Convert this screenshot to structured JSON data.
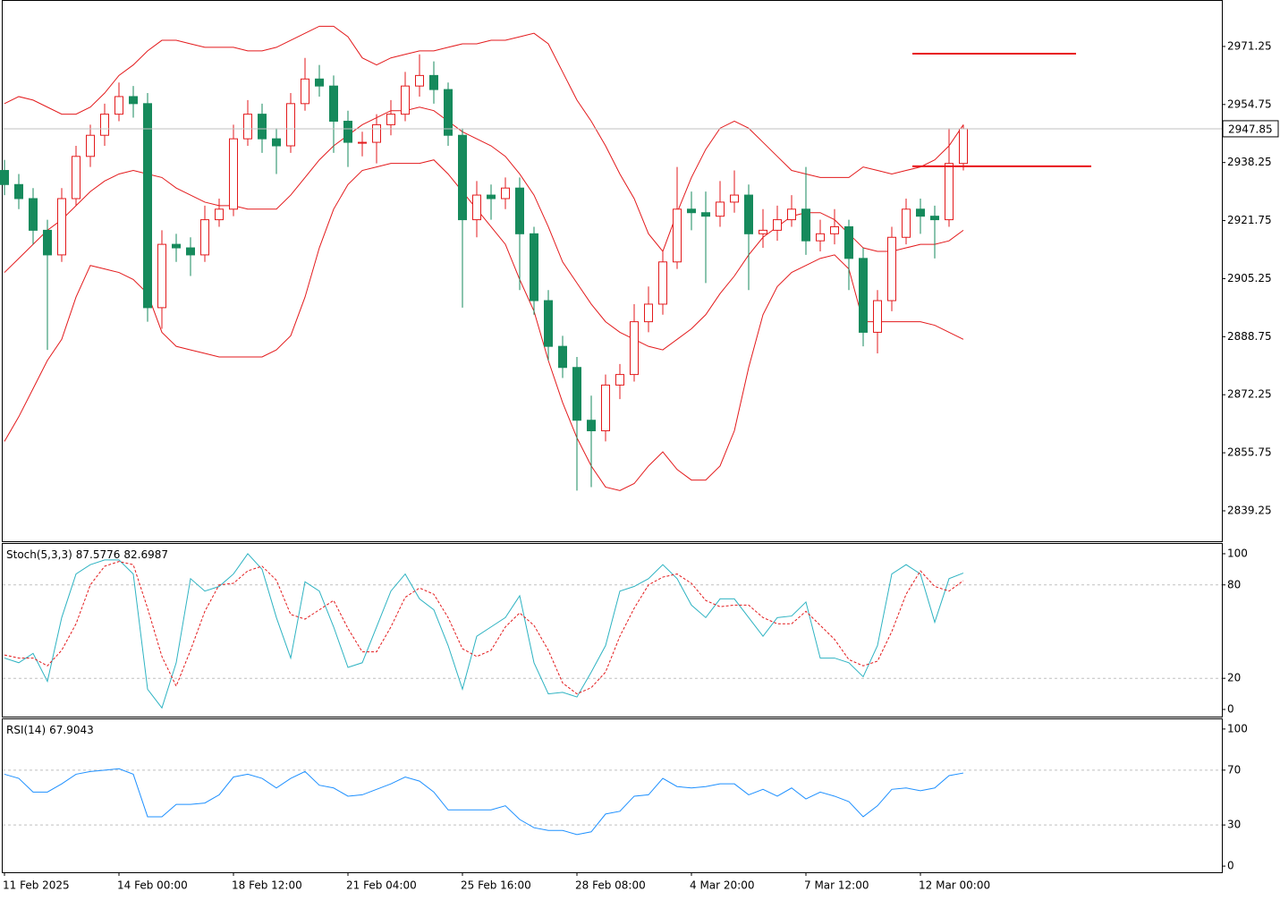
{
  "chart_data": [
    {
      "type": "candlestick",
      "categories": [
        "11 Feb 2025",
        null,
        null,
        null,
        null,
        null,
        null,
        null,
        "14 Feb 00:00",
        null,
        null,
        null,
        null,
        null,
        null,
        null,
        "18 Feb 12:00",
        null,
        null,
        null,
        null,
        null,
        null,
        null,
        "21 Feb 04:00",
        null,
        null,
        null,
        null,
        null,
        null,
        null,
        "25 Feb 16:00",
        null,
        null,
        null,
        null,
        null,
        null,
        null,
        "28 Feb 08:00",
        null,
        null,
        null,
        null,
        null,
        null,
        null,
        "4 Mar 20:00",
        null,
        null,
        null,
        null,
        null,
        null,
        null,
        "7 Mar 12:00",
        null,
        null,
        null,
        null,
        null,
        null,
        null,
        "12 Mar 00:00",
        null,
        null,
        null
      ],
      "open": [
        2936,
        2932,
        2928,
        2919,
        2912,
        2928,
        2940,
        2946,
        2952,
        2957,
        2955,
        2897,
        2915,
        2914,
        2912,
        2922,
        2925,
        2945,
        2952,
        2945,
        2943,
        2955,
        2962,
        2960,
        2950,
        2944,
        2944,
        2949,
        2952,
        2960,
        2963,
        2959,
        2946,
        2922,
        2929,
        2928,
        2931,
        2918,
        2899,
        2886,
        2880,
        2865,
        2862,
        2875,
        2878,
        2893,
        2898,
        2910,
        2925,
        2924,
        2923,
        2927,
        2929,
        2918,
        2919,
        2922,
        2925,
        2916,
        2918,
        2920,
        2911,
        2890,
        2899,
        2917,
        2925,
        2923,
        2922,
        2938
      ],
      "high": [
        2939,
        2935,
        2931,
        2922,
        2931,
        2943,
        2949,
        2955,
        2961,
        2960,
        2958,
        2919,
        2918,
        2917,
        2926,
        2928,
        2949,
        2956,
        2955,
        2948,
        2958,
        2968,
        2966,
        2963,
        2953,
        2947,
        2952,
        2956,
        2964,
        2969,
        2967,
        2961,
        2948,
        2933,
        2932,
        2934,
        2934,
        2920,
        2902,
        2889,
        2883,
        2872,
        2878,
        2881,
        2898,
        2903,
        2913,
        2937,
        2930,
        2930,
        2933,
        2936,
        2932,
        2925,
        2926,
        2929,
        2937,
        2922,
        2925,
        2922,
        2914,
        2902,
        2920,
        2928,
        2928,
        2926,
        2948,
        2949
      ],
      "low": [
        2929,
        2925,
        2915,
        2885,
        2910,
        2926,
        2937,
        2943,
        2950,
        2951,
        2893,
        2891,
        2910,
        2906,
        2910,
        2920,
        2923,
        2943,
        2941,
        2935,
        2941,
        2953,
        2957,
        2941,
        2937,
        2940,
        2938,
        2946,
        2950,
        2957,
        2955,
        2943,
        2897,
        2917,
        2922,
        2925,
        2902,
        2895,
        2882,
        2877,
        2845,
        2846,
        2859,
        2871,
        2876,
        2890,
        2895,
        2908,
        2919,
        2904,
        2920,
        2924,
        2902,
        2914,
        2916,
        2920,
        2912,
        2913,
        2915,
        2902,
        2886,
        2884,
        2896,
        2915,
        2918,
        2911,
        2920,
        2936
      ],
      "close": [
        2932,
        2928,
        2919,
        2912,
        2928,
        2940,
        2946,
        2952,
        2957,
        2955,
        2897,
        2915,
        2914,
        2912,
        2922,
        2925,
        2945,
        2952,
        2945,
        2943,
        2955,
        2962,
        2960,
        2950,
        2944,
        2944,
        2949,
        2952,
        2960,
        2963,
        2959,
        2946,
        2922,
        2929,
        2928,
        2931,
        2918,
        2899,
        2886,
        2880,
        2865,
        2862,
        2875,
        2878,
        2893,
        2898,
        2910,
        2925,
        2924,
        2923,
        2927,
        2929,
        2918,
        2919,
        2922,
        2925,
        2916,
        2918,
        2920,
        2911,
        2890,
        2899,
        2917,
        2925,
        2923,
        2922,
        2938,
        2947.85
      ],
      "up_color": "#e31a1c",
      "down_color": "#168a5c",
      "series": [
        {
          "color": "#e31a1c",
          "values": [
            2955,
            2957,
            2956,
            2954,
            2952,
            2952,
            2954,
            2958,
            2963,
            2966,
            2970,
            2973,
            2973,
            2972,
            2971,
            2971,
            2971,
            2970,
            2970,
            2971,
            2973,
            2975,
            2977,
            2977,
            2974,
            2968,
            2966,
            2968,
            2969,
            2970,
            2970,
            2971,
            2972,
            2972,
            2973,
            2973,
            2974,
            2975,
            2972,
            2964,
            2956,
            2950,
            2943,
            2935,
            2928,
            2918,
            2913,
            2924,
            2934,
            2942,
            2948,
            2950,
            2948,
            2944,
            2940,
            2936,
            2935,
            2934,
            2934,
            2934,
            2937,
            2936,
            2935,
            2936,
            2937,
            2939,
            2943,
            2949
          ]
        },
        {
          "color": "#e31a1c",
          "values": [
            2907,
            2911,
            2915,
            2919,
            2922,
            2926,
            2930,
            2933,
            2935,
            2936,
            2935,
            2934,
            2931,
            2929,
            2927,
            2926,
            2926,
            2925,
            2925,
            2925,
            2929,
            2934,
            2939,
            2943,
            2946,
            2949,
            2951,
            2953,
            2953,
            2954,
            2953,
            2950,
            2947,
            2945,
            2943,
            2940,
            2935,
            2929,
            2920,
            2910,
            2904,
            2898,
            2893,
            2890,
            2888,
            2886,
            2885,
            2888,
            2891,
            2895,
            2901,
            2906,
            2912,
            2917,
            2920,
            2923,
            2924,
            2924,
            2922,
            2918,
            2914,
            2913,
            2913,
            2914,
            2915,
            2915,
            2916,
            2919
          ]
        },
        {
          "color": "#e31a1c",
          "values": [
            2859,
            2866,
            2874,
            2882,
            2888,
            2900,
            2909,
            2908,
            2907,
            2905,
            2901,
            2890,
            2886,
            2885,
            2884,
            2883,
            2883,
            2883,
            2883,
            2885,
            2889,
            2900,
            2914,
            2925,
            2932,
            2936,
            2937,
            2938,
            2938,
            2938,
            2939,
            2935,
            2930,
            2925,
            2920,
            2915,
            2905,
            2896,
            2882,
            2870,
            2860,
            2852,
            2846,
            2845,
            2847,
            2852,
            2856,
            2851,
            2848,
            2848,
            2852,
            2862,
            2880,
            2895,
            2903,
            2907,
            2909,
            2911,
            2912,
            2908,
            2893,
            2893,
            2893,
            2893,
            2893,
            2892,
            2890,
            2888
          ]
        }
      ],
      "levels": [
        2969.2,
        2937.2
      ],
      "level_color": "#e8141a",
      "ylim": [
        2830.6,
        2984.2
      ],
      "yticks": [
        2839.25,
        2855.75,
        2872.25,
        2888.75,
        2905.25,
        2921.75,
        2938.25,
        2954.75,
        2971.25
      ]
    },
    {
      "type": "line",
      "title": "Stoch(5,3,3)",
      "series": [
        {
          "color": "#2eb3c2",
          "values": [
            33,
            30,
            36,
            18,
            59,
            87,
            93,
            96,
            96,
            87,
            13,
            1,
            30,
            84,
            76,
            79,
            87,
            100,
            90,
            59,
            33,
            82,
            76,
            53,
            27,
            30,
            53,
            76,
            87,
            71,
            64,
            41,
            13,
            47,
            53,
            59,
            73,
            30,
            10,
            11,
            8,
            24,
            41,
            76,
            79,
            84,
            93,
            84,
            67,
            59,
            71,
            71,
            59,
            47,
            59,
            60,
            69,
            33,
            33,
            30,
            21,
            41,
            87,
            93,
            87,
            56,
            84,
            87.5776
          ]
        },
        {
          "color": "#e31a1c",
          "dash": true,
          "values": [
            35,
            33,
            33,
            28,
            38,
            55,
            80,
            92,
            95,
            93,
            65,
            34,
            15,
            38,
            63,
            80,
            81,
            89,
            92,
            83,
            61,
            58,
            64,
            70,
            52,
            37,
            37,
            53,
            72,
            78,
            74,
            59,
            39,
            34,
            38,
            53,
            62,
            54,
            38,
            17,
            10,
            14,
            24,
            47,
            65,
            80,
            85,
            87,
            81,
            70,
            66,
            67,
            67,
            59,
            55,
            55,
            63,
            54,
            45,
            32,
            28,
            31,
            50,
            74,
            89,
            79,
            76,
            82.6987
          ]
        }
      ],
      "levels": [
        20,
        80
      ],
      "ylim": [
        -4.6,
        106.3
      ],
      "yticks": [
        0,
        20,
        80,
        100
      ]
    },
    {
      "type": "line",
      "title": "RSI(14)",
      "series": [
        {
          "color": "#1e90ff",
          "values": [
            67,
            64,
            54,
            54,
            60,
            67,
            69,
            70,
            71,
            67,
            36,
            36,
            45,
            45,
            46,
            52,
            65,
            67,
            64,
            57,
            64,
            69,
            59,
            57,
            51,
            52,
            56,
            60,
            65,
            62,
            54,
            41,
            41,
            41,
            41,
            44,
            34,
            28,
            26,
            26,
            23,
            25,
            38,
            40,
            51,
            52,
            64,
            58,
            57,
            58,
            60,
            60,
            52,
            56,
            51,
            57,
            49,
            54,
            51,
            47,
            36,
            44,
            56,
            57,
            55,
            57,
            66,
            67.9043
          ]
        }
      ],
      "levels": [
        30,
        70
      ],
      "ylim": [
        -4.5,
        107.1
      ],
      "yticks": [
        0,
        30,
        70,
        100
      ]
    }
  ]
}
